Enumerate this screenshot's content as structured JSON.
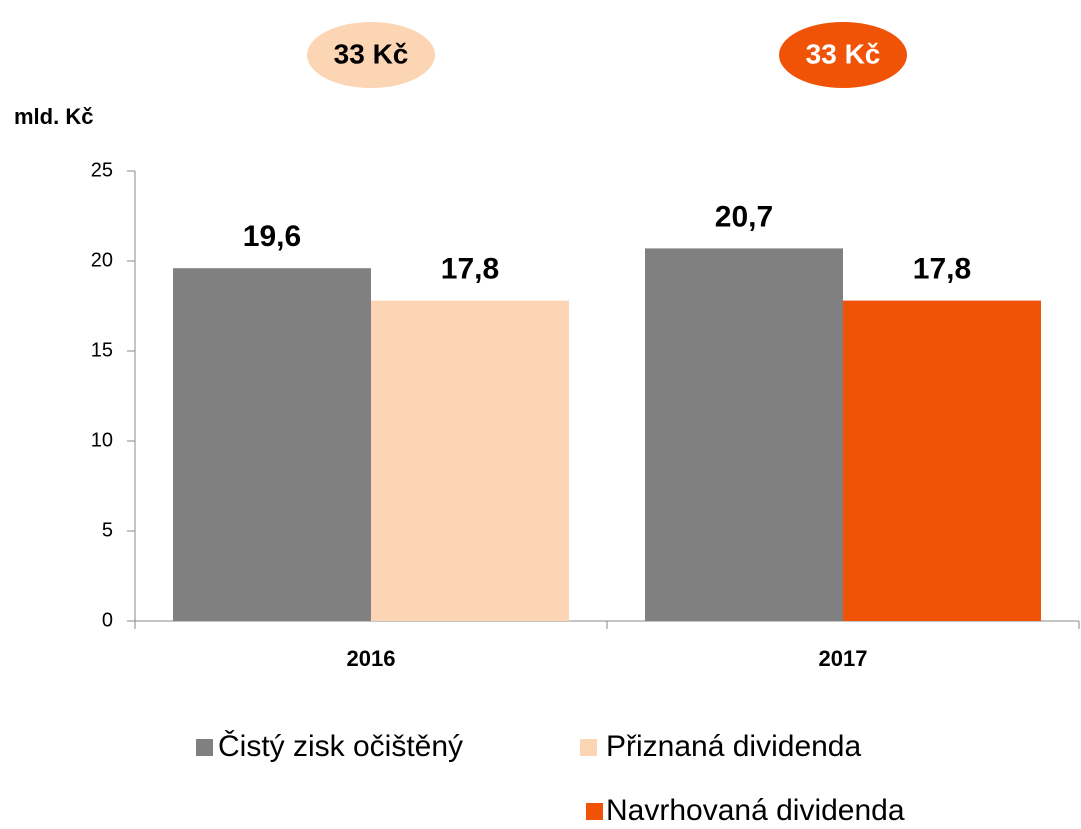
{
  "chart_data": {
    "type": "bar",
    "y_axis_label": "mld. Kč",
    "annotations": [
      "33 Kč",
      "33 Kč"
    ],
    "categories": [
      "2016",
      "2017"
    ],
    "series": [
      {
        "name": "Čistý zisk očištěný",
        "color": "#808080",
        "values": [
          19.6,
          20.7
        ],
        "value_labels": [
          "19,6",
          "20,7"
        ]
      },
      {
        "name": "Přiznaná dividenda",
        "color": "#fcd5b5",
        "values": [
          17.8,
          null
        ],
        "value_labels": [
          "17,8",
          null
        ]
      },
      {
        "name": "Navrhovaná dividenda",
        "color": "#f05206",
        "values": [
          null,
          17.8
        ],
        "value_labels": [
          null,
          "17,8"
        ]
      }
    ],
    "ylim": [
      0,
      25
    ],
    "yticks": [
      0,
      5,
      10,
      15,
      20,
      25
    ],
    "grid": false
  }
}
